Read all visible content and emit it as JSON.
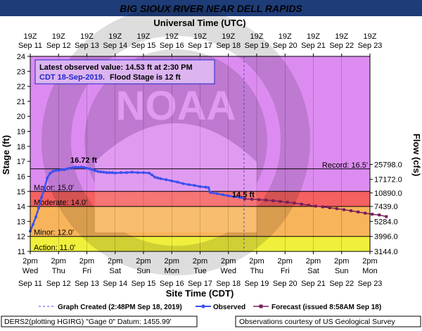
{
  "chart_data": {
    "type": "line",
    "title": "BIG SIOUX RIVER NEAR DELL RAPIDS",
    "top_axis_label": "Universal Time (UTC)",
    "xlabel": "Site Time (CDT)",
    "ylabel": "Stage (ft)",
    "y2label": "Flow (cfs)",
    "ylim": [
      11,
      24
    ],
    "yticks": [
      "11",
      "12",
      "13",
      "14",
      "15",
      "16",
      "17",
      "18",
      "19",
      "20",
      "21",
      "22",
      "23",
      "24"
    ],
    "top_ticks": [
      {
        "time": "19Z",
        "date": "Sep 11"
      },
      {
        "time": "19Z",
        "date": "Sep 12"
      },
      {
        "time": "19Z",
        "date": "Sep 13"
      },
      {
        "time": "19Z",
        "date": "Sep 14"
      },
      {
        "time": "19Z",
        "date": "Sep 15"
      },
      {
        "time": "19Z",
        "date": "Sep 16"
      },
      {
        "time": "19Z",
        "date": "Sep 17"
      },
      {
        "time": "19Z",
        "date": "Sep 18"
      },
      {
        "time": "19Z",
        "date": "Sep 19"
      },
      {
        "time": "19Z",
        "date": "Sep 20"
      },
      {
        "time": "19Z",
        "date": "Sep 21"
      },
      {
        "time": "19Z",
        "date": "Sep 22"
      },
      {
        "time": "19Z",
        "date": "Sep 23"
      }
    ],
    "bottom_ticks": [
      {
        "time": "2pm",
        "day": "Wed",
        "date": "Sep 11"
      },
      {
        "time": "2pm",
        "day": "Thu",
        "date": "Sep 12"
      },
      {
        "time": "2pm",
        "day": "Fri",
        "date": "Sep 13"
      },
      {
        "time": "2pm",
        "day": "Sat",
        "date": "Sep 14"
      },
      {
        "time": "2pm",
        "day": "Sun",
        "date": "Sep 15"
      },
      {
        "time": "2pm",
        "day": "Mon",
        "date": "Sep 16"
      },
      {
        "time": "2pm",
        "day": "Tue",
        "date": "Sep 17"
      },
      {
        "time": "2pm",
        "day": "Wed",
        "date": "Sep 18"
      },
      {
        "time": "2pm",
        "day": "Thu",
        "date": "Sep 19"
      },
      {
        "time": "2pm",
        "day": "Fri",
        "date": "Sep 20"
      },
      {
        "time": "2pm",
        "day": "Sat",
        "date": "Sep 21"
      },
      {
        "time": "2pm",
        "day": "Sun",
        "date": "Sep 22"
      },
      {
        "time": "2pm",
        "day": "Mon",
        "date": "Sep 23"
      }
    ],
    "flow_ticks": [
      {
        "stage": 16.8,
        "label": "25798.0"
      },
      {
        "stage": 15.8,
        "label": "17172.0"
      },
      {
        "stage": 14.9,
        "label": "10890.0"
      },
      {
        "stage": 14.0,
        "label": "7439.0"
      },
      {
        "stage": 13.0,
        "label": "5284.0"
      },
      {
        "stage": 12.0,
        "label": "3996.0"
      },
      {
        "stage": 11.0,
        "label": "3144.0"
      }
    ],
    "flood_categories": [
      {
        "name": "Action",
        "label": "Action: 11.0'",
        "from": 11.0,
        "to": 12.0,
        "color": "#f0f03c"
      },
      {
        "name": "Minor",
        "label": "Minor: 12.0'",
        "from": 12.0,
        "to": 14.0,
        "color": "#f8b45a"
      },
      {
        "name": "Moderate",
        "label": "Moderate: 14.0'",
        "from": 14.0,
        "to": 15.0,
        "color": "#f56060"
      },
      {
        "name": "Major",
        "label": "Major: 15.0'",
        "from": 15.0,
        "to": 24.0,
        "color": "#dc8cf0"
      }
    ],
    "record": {
      "label": "Record: 16.5'",
      "value": 16.5
    },
    "info_line1": "Latest observed value: 14.53 ft at 2:30 PM",
    "info_line2a": "CDT 18-Sep-2019.",
    "info_line2b": "Flood Stage is 12 ft",
    "peak_label": "16.72 ft",
    "forecast_label": "14.5 ft",
    "series": [
      {
        "name": "Observed",
        "color": "#3c50f0",
        "points": [
          [
            0.0,
            12.35
          ],
          [
            0.1,
            12.8
          ],
          [
            0.2,
            13.3
          ],
          [
            0.3,
            13.9
          ],
          [
            0.4,
            14.6
          ],
          [
            0.5,
            15.2
          ],
          [
            0.6,
            15.9
          ],
          [
            0.7,
            16.2
          ],
          [
            0.8,
            16.33
          ],
          [
            0.9,
            16.4
          ],
          [
            1.0,
            16.4
          ],
          [
            1.1,
            16.45
          ],
          [
            1.2,
            16.45
          ],
          [
            1.3,
            16.5
          ],
          [
            1.4,
            16.55
          ],
          [
            1.5,
            16.58
          ],
          [
            1.6,
            16.62
          ],
          [
            1.7,
            16.6
          ],
          [
            1.8,
            16.62
          ],
          [
            1.9,
            16.6
          ],
          [
            2.0,
            16.55
          ],
          [
            2.1,
            16.5
          ],
          [
            2.2,
            16.45
          ],
          [
            2.3,
            16.38
          ],
          [
            2.4,
            16.32
          ],
          [
            2.5,
            16.3
          ],
          [
            2.6,
            16.28
          ],
          [
            2.7,
            16.25
          ],
          [
            2.8,
            16.25
          ],
          [
            2.9,
            16.25
          ],
          [
            3.0,
            16.22
          ],
          [
            3.2,
            16.25
          ],
          [
            3.4,
            16.25
          ],
          [
            3.6,
            16.28
          ],
          [
            3.8,
            16.25
          ],
          [
            4.0,
            16.25
          ],
          [
            4.2,
            16.22
          ],
          [
            4.3,
            16.1
          ],
          [
            4.4,
            15.95
          ],
          [
            4.5,
            15.9
          ],
          [
            4.6,
            15.85
          ],
          [
            4.8,
            15.78
          ],
          [
            5.0,
            15.7
          ],
          [
            5.2,
            15.62
          ],
          [
            5.4,
            15.52
          ],
          [
            5.6,
            15.45
          ],
          [
            5.8,
            15.4
          ],
          [
            6.0,
            15.32
          ],
          [
            6.2,
            15.28
          ],
          [
            6.3,
            15.25
          ],
          [
            6.35,
            14.95
          ],
          [
            6.4,
            14.92
          ],
          [
            6.6,
            14.85
          ],
          [
            6.8,
            14.78
          ],
          [
            7.0,
            14.7
          ],
          [
            7.2,
            14.65
          ],
          [
            7.4,
            14.6
          ],
          [
            7.55,
            14.53
          ]
        ]
      },
      {
        "name": "Forecast (issued 8:58AM Sep 18)",
        "color": "#781e5a",
        "points": [
          [
            7.58,
            14.5
          ],
          [
            7.83,
            14.48
          ],
          [
            8.08,
            14.45
          ],
          [
            8.33,
            14.42
          ],
          [
            8.58,
            14.38
          ],
          [
            8.83,
            14.33
          ],
          [
            9.08,
            14.28
          ],
          [
            9.33,
            14.22
          ],
          [
            9.58,
            14.15
          ],
          [
            9.83,
            14.08
          ],
          [
            10.08,
            14.02
          ],
          [
            10.33,
            13.97
          ],
          [
            10.58,
            13.91
          ],
          [
            10.83,
            13.85
          ],
          [
            11.08,
            13.78
          ],
          [
            11.33,
            13.71
          ],
          [
            11.58,
            13.63
          ],
          [
            11.83,
            13.55
          ],
          [
            12.08,
            13.48
          ],
          [
            12.33,
            13.43
          ],
          [
            12.58,
            13.32
          ]
        ]
      }
    ],
    "legend_graph_created": "Graph Created (2:48PM Sep 18, 2019)",
    "legend_observed": "Observed",
    "legend_forecast": "Forecast (issued 8:58AM Sep 18)",
    "footer_left": "DERS2(plotting HGIRG) \"Gage 0\" Datum: 1455.99'",
    "footer_right": "Observations courtesy of US Geological Survey",
    "colors": {
      "header_bg": "#1e3c78",
      "header_text": "#ffffff",
      "observed": "#3c50f0",
      "forecast": "#781e5a",
      "info_text": "#1e28c8"
    }
  }
}
